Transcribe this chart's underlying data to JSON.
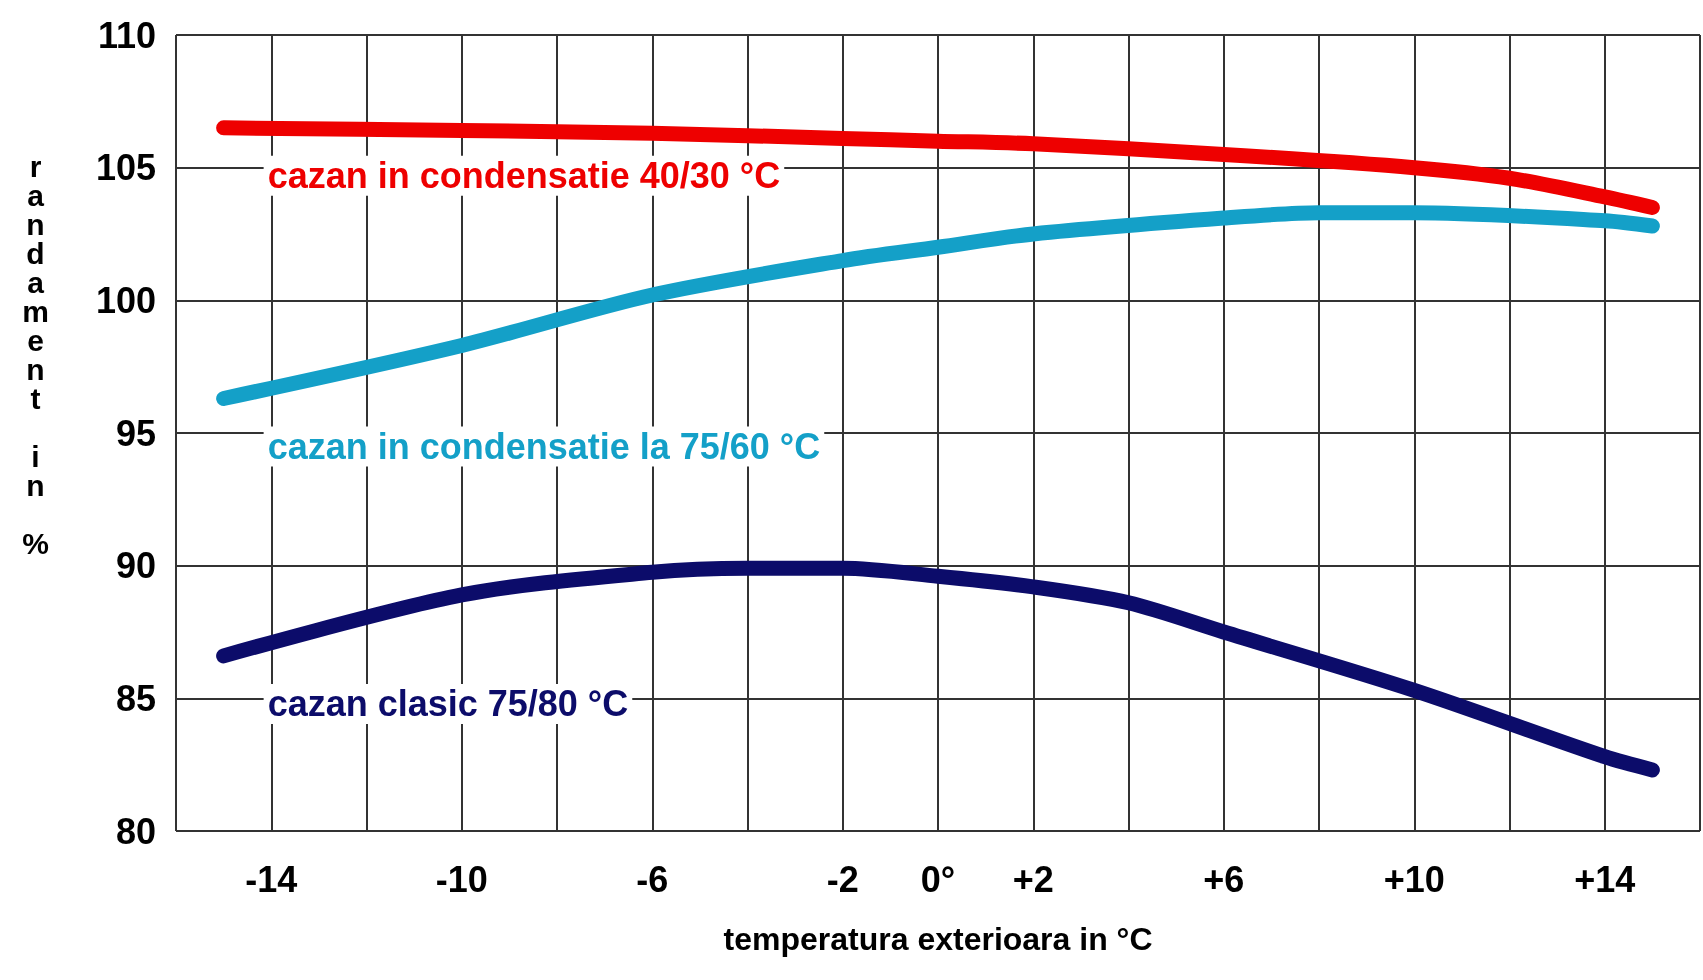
{
  "chart_data": {
    "type": "line",
    "xlabel": "temperatura exterioara in °C",
    "ylabel": "randament in %",
    "xlim": [
      -16,
      16
    ],
    "ylim": [
      80,
      110
    ],
    "xticks": [
      {
        "value": -16,
        "label": null
      },
      {
        "value": -14,
        "label": "-14"
      },
      {
        "value": -12,
        "label": null
      },
      {
        "value": -10,
        "label": "-10"
      },
      {
        "value": -8,
        "label": null
      },
      {
        "value": -6,
        "label": "-6"
      },
      {
        "value": -4,
        "label": null
      },
      {
        "value": -2,
        "label": "-2"
      },
      {
        "value": 0,
        "label": "0°"
      },
      {
        "value": 2,
        "label": "+2"
      },
      {
        "value": 4,
        "label": null
      },
      {
        "value": 6,
        "label": "+6"
      },
      {
        "value": 8,
        "label": null
      },
      {
        "value": 10,
        "label": "+10"
      },
      {
        "value": 12,
        "label": null
      },
      {
        "value": 14,
        "label": "+14"
      },
      {
        "value": 16,
        "label": null
      }
    ],
    "yticks": [
      80,
      85,
      90,
      95,
      100,
      105,
      110
    ],
    "grid": true,
    "legend": false,
    "line_style": "solid",
    "series": [
      {
        "name": "cazan in condensatie 40/30 °C",
        "color": "#ee0000",
        "x": [
          -15,
          -10,
          -6,
          -2,
          0,
          2,
          6,
          10,
          12,
          14,
          15
        ],
        "values": [
          106.5,
          106.4,
          106.3,
          106.1,
          106.0,
          105.9,
          105.5,
          105.0,
          104.6,
          103.9,
          103.5
        ]
      },
      {
        "name": "cazan in condensatie la 75/60 °C",
        "color": "#14a0c8",
        "x": [
          -15,
          -10,
          -6,
          -2,
          0,
          2,
          6,
          8,
          10,
          14,
          15
        ],
        "values": [
          96.3,
          98.3,
          100.2,
          101.5,
          102.0,
          102.5,
          103.1,
          103.3,
          103.3,
          103.0,
          102.8
        ]
      },
      {
        "name": "cazan clasic 75/80 °C",
        "color": "#0c0c6a",
        "x": [
          -15,
          -10,
          -6,
          -4,
          -2,
          0,
          2,
          4,
          6,
          10,
          14,
          15
        ],
        "values": [
          86.6,
          88.9,
          89.75,
          89.9,
          89.9,
          89.6,
          89.2,
          88.6,
          87.5,
          85.3,
          82.8,
          82.3
        ]
      }
    ]
  }
}
